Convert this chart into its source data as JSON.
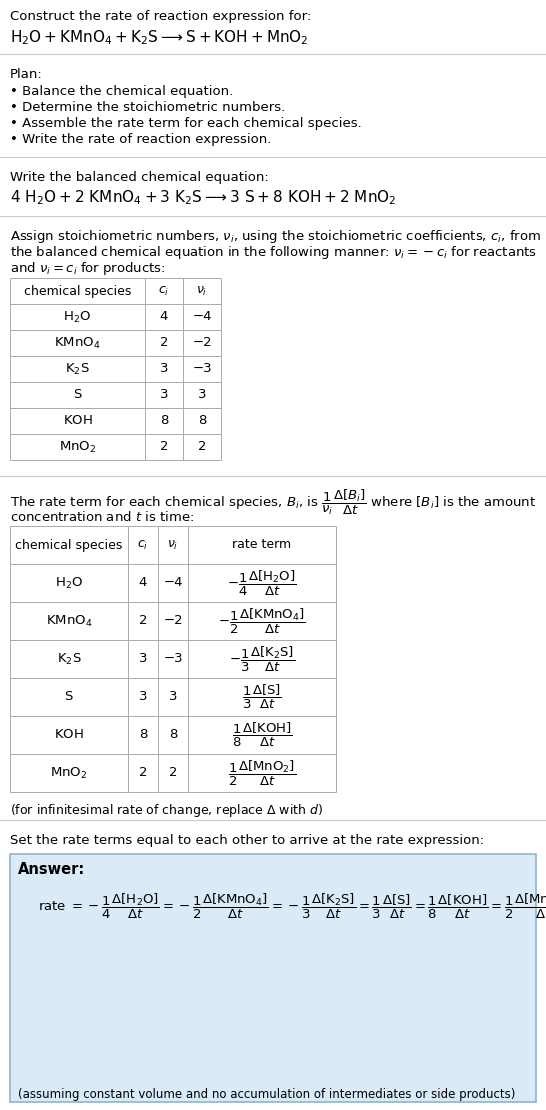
{
  "title_line1": "Construct the rate of reaction expression for:",
  "plan_header": "Plan:",
  "plan_items": [
    "• Balance the chemical equation.",
    "• Determine the stoichiometric numbers.",
    "• Assemble the rate term for each chemical species.",
    "• Write the rate of reaction expression."
  ],
  "balanced_header": "Write the balanced chemical equation:",
  "table1_headers": [
    "chemical species",
    "$c_i$",
    "$\\nu_i$"
  ],
  "table1_data": [
    [
      "$\\mathrm{H_2O}$",
      "4",
      "−4"
    ],
    [
      "$\\mathrm{KMnO_4}$",
      "2",
      "−2"
    ],
    [
      "$\\mathrm{K_2S}$",
      "3",
      "−3"
    ],
    [
      "$\\mathrm{S}$",
      "3",
      "3"
    ],
    [
      "$\\mathrm{KOH}$",
      "8",
      "8"
    ],
    [
      "$\\mathrm{MnO_2}$",
      "2",
      "2"
    ]
  ],
  "table2_headers": [
    "chemical species",
    "$c_i$",
    "$\\nu_i$",
    "rate term"
  ],
  "table2_data": [
    [
      "$\\mathrm{H_2O}$",
      "4",
      "−4",
      "$-\\dfrac{1}{4}\\dfrac{\\Delta[\\mathrm{H_2O}]}{\\Delta t}$"
    ],
    [
      "$\\mathrm{KMnO_4}$",
      "2",
      "−2",
      "$-\\dfrac{1}{2}\\dfrac{\\Delta[\\mathrm{KMnO_4}]}{\\Delta t}$"
    ],
    [
      "$\\mathrm{K_2S}$",
      "3",
      "−3",
      "$-\\dfrac{1}{3}\\dfrac{\\Delta[\\mathrm{K_2S}]}{\\Delta t}$"
    ],
    [
      "$\\mathrm{S}$",
      "3",
      "3",
      "$\\dfrac{1}{3}\\dfrac{\\Delta[\\mathrm{S}]}{\\Delta t}$"
    ],
    [
      "$\\mathrm{KOH}$",
      "8",
      "8",
      "$\\dfrac{1}{8}\\dfrac{\\Delta[\\mathrm{KOH}]}{\\Delta t}$"
    ],
    [
      "$\\mathrm{MnO_2}$",
      "2",
      "2",
      "$\\dfrac{1}{2}\\dfrac{\\Delta[\\mathrm{MnO_2}]}{\\Delta t}$"
    ]
  ],
  "infinitesimal_note": "(for infinitesimal rate of change, replace Δ with $d$)",
  "set_equal_text": "Set the rate terms equal to each other to arrive at the rate expression:",
  "answer_label": "Answer:",
  "answer_box_color": "#daeaf6",
  "answer_box_border": "#90b4cc",
  "assuming_note": "(assuming constant volume and no accumulation of intermediates or side products)",
  "bg_color": "#ffffff",
  "text_color": "#000000",
  "table_border_color": "#aaaaaa",
  "font_size": 9.5
}
